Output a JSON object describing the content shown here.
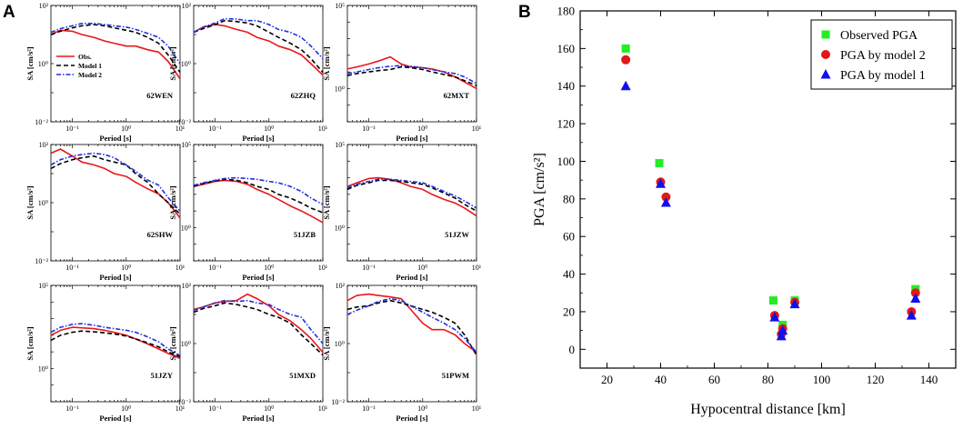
{
  "panel_a_letter": "A",
  "panel_b_letter": "B",
  "colors": {
    "obs": "#e8171b",
    "model1": "#000000",
    "model2": "#1f2fe0",
    "green": "#22ee22",
    "red": "#e01818",
    "blue": "#1010ee"
  },
  "chart_data": [
    {
      "type": "line",
      "panel": "A",
      "xlabel": "Period [s]",
      "ylabel": "SA [cm/s²]",
      "xscale": "log",
      "yscale": "log",
      "xlim": [
        0.04,
        10
      ],
      "x_tick_labels": [
        "10⁻¹",
        "10⁰",
        "10¹"
      ],
      "legend": {
        "items": [
          "Obs.",
          "Model 1",
          "Model 2"
        ],
        "position": "lower-left"
      },
      "series_names": [
        "Obs.",
        "Model 1",
        "Model 2"
      ],
      "periods": [
        0.04,
        0.06,
        0.1,
        0.15,
        0.25,
        0.4,
        0.6,
        1,
        1.5,
        2.5,
        4,
        6,
        10
      ],
      "subplots": [
        {
          "station": "62WEN",
          "ylim": [
            0.01,
            100
          ],
          "y_tick_labels": [
            "10⁻²",
            "10⁰",
            "10²"
          ],
          "obs": [
            10,
            14,
            13,
            10,
            8,
            6,
            5,
            4,
            4,
            3,
            2.5,
            1.2,
            0.3
          ],
          "model1": [
            10,
            13,
            17,
            20,
            22,
            20,
            17,
            14,
            12,
            8,
            5,
            2,
            0.5
          ],
          "model2": [
            12,
            16,
            20,
            24,
            24,
            22,
            20,
            18,
            15,
            11,
            8,
            4,
            1
          ]
        },
        {
          "station": "62ZHQ",
          "ylim": [
            0.01,
            100
          ],
          "y_tick_labels": [
            "10⁻²",
            "10⁰",
            "10²"
          ],
          "obs": [
            12,
            18,
            22,
            20,
            15,
            12,
            8,
            6,
            4,
            3,
            2,
            1,
            0.4
          ],
          "model1": [
            12,
            16,
            22,
            30,
            28,
            25,
            20,
            12,
            8,
            5,
            3,
            1.5,
            0.5
          ],
          "model2": [
            12,
            18,
            25,
            35,
            34,
            30,
            30,
            22,
            15,
            12,
            8,
            4,
            1.5
          ]
        },
        {
          "station": "62MXT",
          "ylim": [
            0.01,
            100000
          ],
          "y_tick_labels": [
            "10⁰",
            "10⁵"
          ],
          "obs": [
            15,
            20,
            30,
            45,
            80,
            30,
            20,
            18,
            15,
            10,
            5,
            2.5,
            1
          ],
          "model1": [
            6,
            8,
            10,
            12,
            14,
            20,
            18,
            14,
            10,
            7,
            5,
            3,
            1.5
          ],
          "model2": [
            8,
            10,
            14,
            18,
            22,
            24,
            22,
            18,
            14,
            10,
            8,
            5,
            2
          ]
        },
        {
          "station": "62SHW",
          "ylim": [
            0.01,
            100
          ],
          "y_tick_labels": [
            "10⁻²",
            "10⁰",
            "10²"
          ],
          "obs": [
            50,
            70,
            40,
            25,
            20,
            15,
            10,
            8,
            5,
            3,
            2,
            1,
            0.3
          ],
          "model1": [
            15,
            22,
            30,
            35,
            40,
            30,
            25,
            20,
            10,
            5,
            2,
            1,
            0.4
          ],
          "model2": [
            20,
            30,
            40,
            45,
            50,
            45,
            35,
            20,
            12,
            6,
            4,
            1.5,
            0.5
          ]
        },
        {
          "station": "51JZB",
          "ylim": [
            0.01,
            100000
          ],
          "y_tick_labels": [
            "10⁰",
            "10⁵"
          ],
          "obs": [
            300,
            400,
            600,
            700,
            600,
            400,
            200,
            100,
            50,
            20,
            10,
            5,
            2
          ],
          "model1": [
            300,
            450,
            650,
            800,
            700,
            500,
            300,
            200,
            100,
            60,
            30,
            15,
            8
          ],
          "model2": [
            350,
            500,
            700,
            900,
            1000,
            900,
            800,
            600,
            500,
            300,
            150,
            60,
            25
          ]
        },
        {
          "station": "51JZW",
          "ylim": [
            0.01,
            100000
          ],
          "y_tick_labels": [
            "10⁰",
            "10⁵"
          ],
          "obs": [
            300,
            500,
            900,
            1000,
            800,
            500,
            300,
            200,
            100,
            50,
            30,
            15,
            5
          ],
          "model1": [
            200,
            350,
            500,
            700,
            700,
            600,
            500,
            400,
            250,
            120,
            60,
            25,
            10
          ],
          "model2": [
            250,
            400,
            600,
            800,
            800,
            700,
            600,
            500,
            300,
            150,
            80,
            40,
            15
          ]
        },
        {
          "station": "51JZY",
          "ylim": [
            0.01,
            100000
          ],
          "y_tick_labels": [
            "10⁰",
            "10⁵"
          ],
          "obs": [
            100,
            200,
            300,
            280,
            250,
            200,
            150,
            100,
            60,
            30,
            15,
            8,
            4
          ],
          "model1": [
            50,
            100,
            150,
            180,
            160,
            140,
            120,
            90,
            60,
            35,
            20,
            10,
            5
          ],
          "model2": [
            150,
            300,
            450,
            500,
            400,
            300,
            250,
            200,
            150,
            80,
            40,
            15,
            6
          ]
        },
        {
          "station": "51MXD",
          "ylim": [
            0.01,
            100
          ],
          "y_tick_labels": [
            "10⁻²",
            "10⁰",
            "10²"
          ],
          "obs": [
            15,
            18,
            25,
            28,
            30,
            50,
            35,
            20,
            10,
            6,
            3,
            1.5,
            0.5
          ],
          "model1": [
            12,
            16,
            20,
            25,
            22,
            18,
            15,
            10,
            8,
            5,
            2,
            1,
            0.4
          ],
          "model2": [
            14,
            18,
            25,
            30,
            28,
            30,
            25,
            22,
            15,
            10,
            8,
            3,
            1
          ]
        },
        {
          "station": "51PWM",
          "ylim": [
            0.01,
            100
          ],
          "y_tick_labels": [
            "10⁻²",
            "10⁰",
            "10²"
          ],
          "obs": [
            30,
            45,
            50,
            45,
            40,
            35,
            15,
            5,
            3,
            3,
            2,
            1,
            0.5
          ],
          "model1": [
            15,
            18,
            20,
            25,
            30,
            25,
            20,
            15,
            12,
            8,
            5,
            2,
            0.4
          ],
          "model2": [
            10,
            14,
            20,
            28,
            35,
            30,
            20,
            12,
            8,
            5,
            3,
            1.5,
            0.5
          ]
        }
      ]
    },
    {
      "type": "scatter",
      "panel": "B",
      "xlabel": "Hypocentral distance [km]",
      "ylabel": "PGA [cm/s²]",
      "xlim": [
        10,
        150
      ],
      "ylim": [
        -10,
        180
      ],
      "x_ticks": [
        20,
        40,
        60,
        80,
        100,
        120,
        140
      ],
      "y_ticks": [
        0,
        20,
        40,
        60,
        80,
        100,
        120,
        140,
        160,
        180
      ],
      "legend": {
        "position": "top-right"
      },
      "series": [
        {
          "name": "Observed PGA",
          "marker": "square",
          "color": "#22ee22",
          "points": [
            [
              27,
              160
            ],
            [
              39.5,
              99
            ],
            [
              82,
              26
            ],
            [
              85.5,
              13
            ],
            [
              90,
              26
            ],
            [
              135,
              32
            ]
          ]
        },
        {
          "name": "PGA by model 2",
          "marker": "circle",
          "color": "#e01818",
          "points": [
            [
              27,
              154
            ],
            [
              40,
              89
            ],
            [
              42,
              81
            ],
            [
              82.5,
              18
            ],
            [
              85,
              8
            ],
            [
              85.5,
              11
            ],
            [
              90,
              25
            ],
            [
              133.5,
              20
            ],
            [
              135,
              30
            ]
          ]
        },
        {
          "name": "PGA by model 1",
          "marker": "triangle",
          "color": "#1010ee",
          "points": [
            [
              27,
              140
            ],
            [
              40,
              88
            ],
            [
              42,
              78
            ],
            [
              82.5,
              17
            ],
            [
              85,
              7
            ],
            [
              85.5,
              10
            ],
            [
              90,
              24
            ],
            [
              133.5,
              18
            ],
            [
              135,
              27
            ]
          ]
        }
      ]
    }
  ]
}
